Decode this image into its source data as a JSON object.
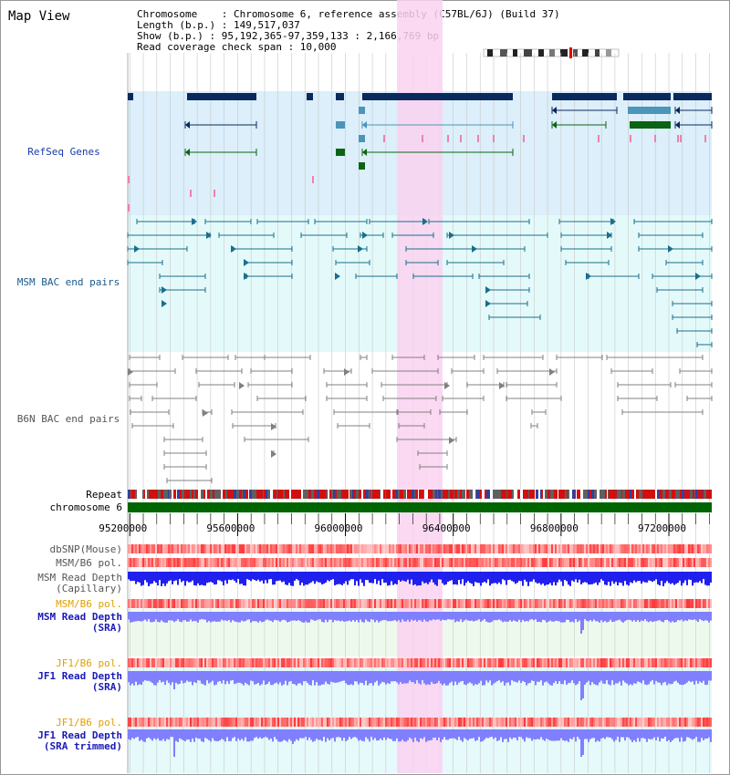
{
  "view": {
    "title": "Map View",
    "info": {
      "chromosome": "Chromosome    : Chromosome 6, reference assembly (C57BL/6J) (Build 37)",
      "length": "Length (b.p.) : 149,517,037",
      "show": "Show (b.p.) : 95,192,365-97,359,133 : 2,166,769 bp",
      "coverage": "Read coverage check span : 10,000"
    }
  },
  "colors": {
    "refseq_bg": "#dceffa",
    "msm_bac_bg": "#e4fafa",
    "highlight": "#fad2f0",
    "gene_navy": "#0a2a5e",
    "gene_teal": "#4a95b8",
    "gene_green": "#0a6414",
    "msm_pair": "#1a6e8c",
    "b6n_pair": "#808080",
    "chrom_bar": "#006400",
    "depth_dark": "#0000ff",
    "depth_light": "#8080ff",
    "snp_red": "#ff5050"
  },
  "tracks": {
    "refseq": "RefSeq Genes",
    "msm_bac": "MSM BAC end pairs",
    "b6n_bac": "B6N BAC end pairs",
    "repeat": "Repeat",
    "chromosome": "chromosome 6",
    "dbsnp": "dbSNP(Mouse)",
    "msm_b6_pol_1": "MSM/B6 pol.",
    "msm_read_depth_cap": [
      "MSM Read Depth",
      "(Capillary)"
    ],
    "msm_b6_pol_2": "MSM/B6 pol.",
    "msm_read_depth_sra": [
      "MSM Read Depth",
      "(SRA)"
    ],
    "jf1_b6_pol_1": "JF1/B6 pol.",
    "jf1_read_depth_sra": [
      "JF1 Read Depth",
      "(SRA)"
    ],
    "jf1_b6_pol_2": "JF1/B6 pol.",
    "jf1_read_depth_trim": [
      "JF1 Read Depth",
      "(SRA trimmed)"
    ]
  },
  "axis": {
    "ticks": [
      "95200000",
      "95600000",
      "96000000",
      "96400000",
      "96800000",
      "97200000"
    ],
    "tick_values": [
      95200000,
      95600000,
      96000000,
      96400000,
      96800000,
      97200000
    ],
    "range": [
      95192365,
      97359133
    ]
  }
}
